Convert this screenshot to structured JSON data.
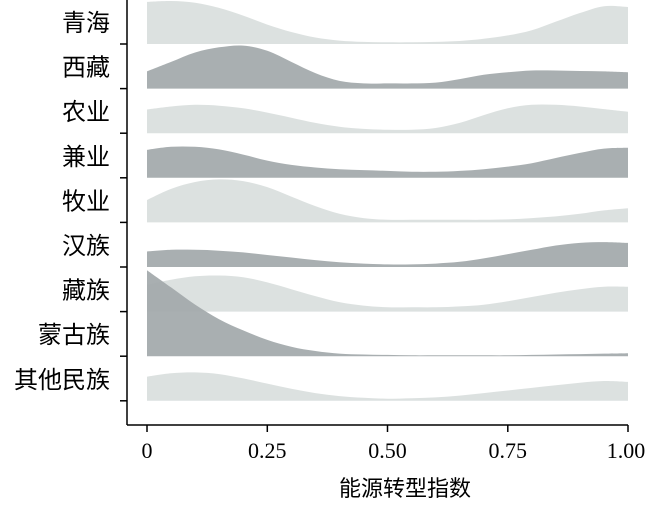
{
  "chart_data": {
    "type": "ridgeline",
    "title": "",
    "xlabel": "能源转型指数",
    "ylabel": "",
    "xlim": [
      0,
      1
    ],
    "x_ticks": [
      0,
      0.25,
      0.5,
      0.75,
      1
    ],
    "x_tick_labels": [
      "0",
      "0.25",
      "0.50",
      "0.75",
      "1.00"
    ],
    "grid": false,
    "colors": {
      "light": "#d9dedd",
      "dark": "#a2a8aa",
      "axis": "#000000"
    },
    "x": [
      0,
      0.05,
      0.1,
      0.15,
      0.2,
      0.25,
      0.3,
      0.35,
      0.4,
      0.45,
      0.5,
      0.55,
      0.6,
      0.65,
      0.7,
      0.75,
      0.8,
      0.85,
      0.9,
      0.95,
      1.0
    ],
    "series": [
      {
        "name": "青海",
        "shade": "light",
        "values": [
          0.98,
          1.0,
          0.96,
          0.84,
          0.66,
          0.45,
          0.28,
          0.15,
          0.08,
          0.05,
          0.04,
          0.04,
          0.05,
          0.07,
          0.12,
          0.2,
          0.32,
          0.52,
          0.72,
          0.88,
          0.86
        ]
      },
      {
        "name": "西藏",
        "shade": "dark",
        "values": [
          0.4,
          0.62,
          0.84,
          0.96,
          1.0,
          0.88,
          0.62,
          0.36,
          0.18,
          0.12,
          0.12,
          0.12,
          0.14,
          0.22,
          0.32,
          0.38,
          0.42,
          0.42,
          0.41,
          0.4,
          0.38
        ]
      },
      {
        "name": "农业",
        "shade": "light",
        "values": [
          0.55,
          0.62,
          0.66,
          0.64,
          0.58,
          0.48,
          0.36,
          0.24,
          0.15,
          0.1,
          0.08,
          0.08,
          0.12,
          0.24,
          0.42,
          0.58,
          0.66,
          0.66,
          0.62,
          0.56,
          0.5
        ]
      },
      {
        "name": "兼业",
        "shade": "dark",
        "values": [
          0.65,
          0.72,
          0.72,
          0.66,
          0.54,
          0.4,
          0.3,
          0.24,
          0.2,
          0.18,
          0.16,
          0.14,
          0.14,
          0.16,
          0.2,
          0.26,
          0.34,
          0.46,
          0.58,
          0.68,
          0.7
        ]
      },
      {
        "name": "牧业",
        "shade": "light",
        "values": [
          0.52,
          0.78,
          0.94,
          1.0,
          0.96,
          0.82,
          0.6,
          0.38,
          0.2,
          0.1,
          0.06,
          0.06,
          0.06,
          0.06,
          0.06,
          0.07,
          0.1,
          0.14,
          0.2,
          0.28,
          0.33
        ]
      },
      {
        "name": "汉族",
        "shade": "dark",
        "values": [
          0.36,
          0.4,
          0.4,
          0.38,
          0.34,
          0.28,
          0.22,
          0.16,
          0.11,
          0.08,
          0.06,
          0.06,
          0.08,
          0.12,
          0.2,
          0.3,
          0.4,
          0.5,
          0.56,
          0.58,
          0.56
        ]
      },
      {
        "name": "藏族",
        "shade": "light",
        "values": [
          0.62,
          0.74,
          0.82,
          0.84,
          0.8,
          0.68,
          0.52,
          0.36,
          0.22,
          0.14,
          0.1,
          0.1,
          0.1,
          0.12,
          0.16,
          0.24,
          0.34,
          0.44,
          0.52,
          0.58,
          0.58
        ]
      },
      {
        "name": "蒙古族",
        "shade": "dark",
        "values": [
          2.0,
          1.6,
          1.2,
          0.86,
          0.6,
          0.38,
          0.22,
          0.12,
          0.06,
          0.04,
          0.03,
          0.02,
          0.02,
          0.02,
          0.02,
          0.02,
          0.03,
          0.04,
          0.05,
          0.06,
          0.07
        ]
      },
      {
        "name": "其他民族",
        "shade": "light",
        "values": [
          0.56,
          0.64,
          0.66,
          0.62,
          0.52,
          0.4,
          0.28,
          0.18,
          0.11,
          0.07,
          0.05,
          0.06,
          0.08,
          0.12,
          0.18,
          0.24,
          0.3,
          0.36,
          0.42,
          0.46,
          0.44
        ]
      }
    ]
  }
}
